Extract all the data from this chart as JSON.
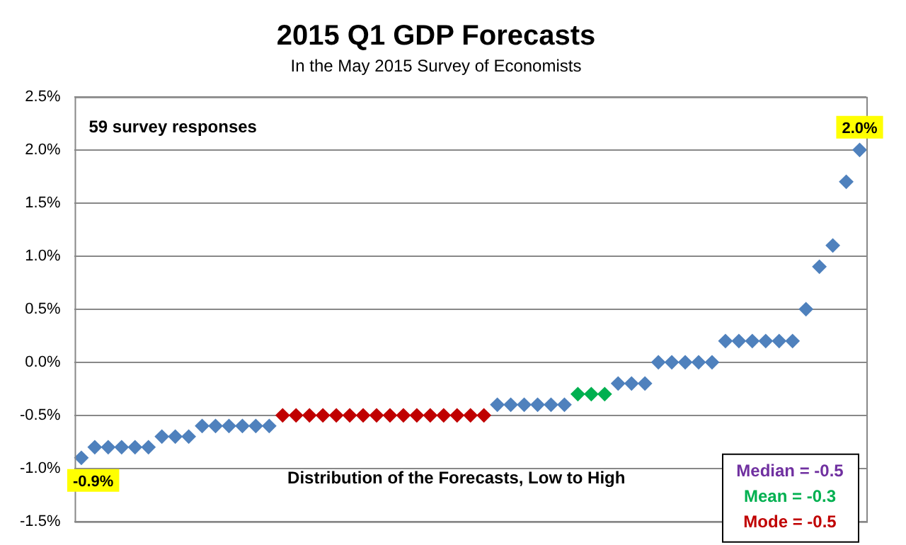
{
  "chart_data": {
    "type": "scatter",
    "title": "2015 Q1 GDP Forecasts",
    "subtitle": "In the May 2015 Survey of Economists",
    "xlabel": "Distribution of the Forecasts, Low to High",
    "categories": [
      null,
      null,
      null,
      null,
      null,
      null,
      null,
      null,
      null,
      null,
      null,
      null,
      null,
      null,
      null,
      null,
      null,
      null,
      null,
      null,
      null,
      null,
      null,
      null,
      null,
      null,
      null,
      null,
      null,
      null,
      null,
      null,
      null,
      null,
      null,
      null,
      null,
      null,
      null,
      null,
      null,
      null,
      null,
      null,
      null,
      null,
      null,
      null,
      null,
      null,
      null,
      null,
      null,
      null,
      null,
      null,
      null,
      null,
      null
    ],
    "values": [
      -0.9,
      -0.8,
      -0.8,
      -0.8,
      -0.8,
      -0.8,
      -0.7,
      -0.7,
      -0.7,
      -0.6,
      -0.6,
      -0.6,
      -0.6,
      -0.6,
      -0.6,
      -0.5,
      -0.5,
      -0.5,
      -0.5,
      -0.5,
      -0.5,
      -0.5,
      -0.5,
      -0.5,
      -0.5,
      -0.5,
      -0.5,
      -0.5,
      -0.5,
      -0.5,
      -0.5,
      -0.4,
      -0.4,
      -0.4,
      -0.4,
      -0.4,
      -0.4,
      -0.3,
      -0.3,
      -0.3,
      -0.2,
      -0.2,
      -0.2,
      0.0,
      0.0,
      0.0,
      0.0,
      0.0,
      0.2,
      0.2,
      0.2,
      0.2,
      0.2,
      0.2,
      0.5,
      0.9,
      1.1,
      1.7,
      2.0
    ],
    "colors": [
      "#4f81bd",
      "#4f81bd",
      "#4f81bd",
      "#4f81bd",
      "#4f81bd",
      "#4f81bd",
      "#4f81bd",
      "#4f81bd",
      "#4f81bd",
      "#4f81bd",
      "#4f81bd",
      "#4f81bd",
      "#4f81bd",
      "#4f81bd",
      "#4f81bd",
      "#c00000",
      "#c00000",
      "#c00000",
      "#c00000",
      "#c00000",
      "#c00000",
      "#c00000",
      "#c00000",
      "#c00000",
      "#c00000",
      "#c00000",
      "#c00000",
      "#c00000",
      "#c00000",
      "#c00000",
      "#c00000",
      "#4f81bd",
      "#4f81bd",
      "#4f81bd",
      "#4f81bd",
      "#4f81bd",
      "#4f81bd",
      "#00b050",
      "#00b050",
      "#00b050",
      "#4f81bd",
      "#4f81bd",
      "#4f81bd",
      "#4f81bd",
      "#4f81bd",
      "#4f81bd",
      "#4f81bd",
      "#4f81bd",
      "#4f81bd",
      "#4f81bd",
      "#4f81bd",
      "#4f81bd",
      "#4f81bd",
      "#4f81bd",
      "#4f81bd",
      "#4f81bd",
      "#4f81bd",
      "#4f81bd",
      "#4f81bd"
    ],
    "value_labels": [
      "-0.9%",
      null,
      null,
      null,
      null,
      null,
      null,
      null,
      null,
      null,
      null,
      null,
      null,
      null,
      null,
      null,
      null,
      null,
      null,
      null,
      null,
      null,
      null,
      null,
      null,
      null,
      null,
      null,
      null,
      null,
      null,
      null,
      null,
      null,
      null,
      null,
      null,
      null,
      null,
      null,
      null,
      null,
      null,
      null,
      null,
      null,
      null,
      null,
      null,
      null,
      null,
      null,
      null,
      null,
      null,
      null,
      null,
      null,
      "2.0%"
    ],
    "ylim": [
      -1.5,
      2.5
    ],
    "yticks": [
      {
        "value": -1.5,
        "label": "-1.5%"
      },
      {
        "value": -1.0,
        "label": "-1.0%"
      },
      {
        "value": -0.5,
        "label": "-0.5%"
      },
      {
        "value": 0,
        "label": "0.0%"
      },
      {
        "value": 0.5,
        "label": "0.5%"
      },
      {
        "value": 1.0,
        "label": "1.0%"
      },
      {
        "value": 1.5,
        "label": "1.5%"
      },
      {
        "value": 2.0,
        "label": "2.0%"
      },
      {
        "value": 2.5,
        "label": "2.5%"
      }
    ],
    "tick_labels": "y",
    "grid": "y",
    "legend": false,
    "marker": "diamond",
    "annotations": [
      "59 survey responses",
      "Median = -0.5",
      "Mean = -0.3",
      "Mode = -0.5"
    ]
  }
}
